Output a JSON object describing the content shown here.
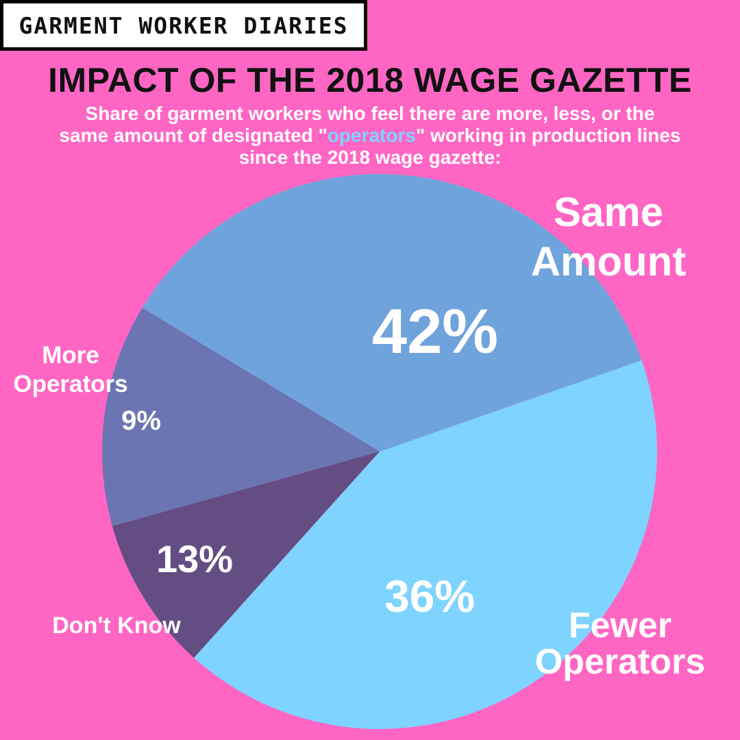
{
  "header": {
    "brand": "GARMENT WORKER DIARIES",
    "title": "IMPACT OF THE 2018 WAGE GAZETTE",
    "subtitle_line1": "Share of garment workers who feel there are more, less, or the",
    "subtitle_line2_pre": "same amount of designated \"",
    "subtitle_highlight": "operators",
    "subtitle_line2_post": "\" working in production lines",
    "subtitle_line3": "since the 2018 wage gazette:"
  },
  "colors": {
    "background": "#ff66c4",
    "highlight": "#7fd3ff",
    "text_dark": "#111111",
    "label": "#ffffff"
  },
  "chart_data": {
    "type": "pie",
    "slices": [
      {
        "name": "Same Amount",
        "value": 42,
        "value_label": "42%",
        "color": "#7fd3ff"
      },
      {
        "name": "Fewer Operators",
        "value": 36,
        "value_label": "36%",
        "color": "#6fa3db"
      },
      {
        "name": "Don't Know",
        "value": 13,
        "value_label": "13%",
        "color": "#6b75b2"
      },
      {
        "name": "More Operators",
        "value": 9,
        "value_label": "9%",
        "color": "#634d82"
      }
    ]
  }
}
